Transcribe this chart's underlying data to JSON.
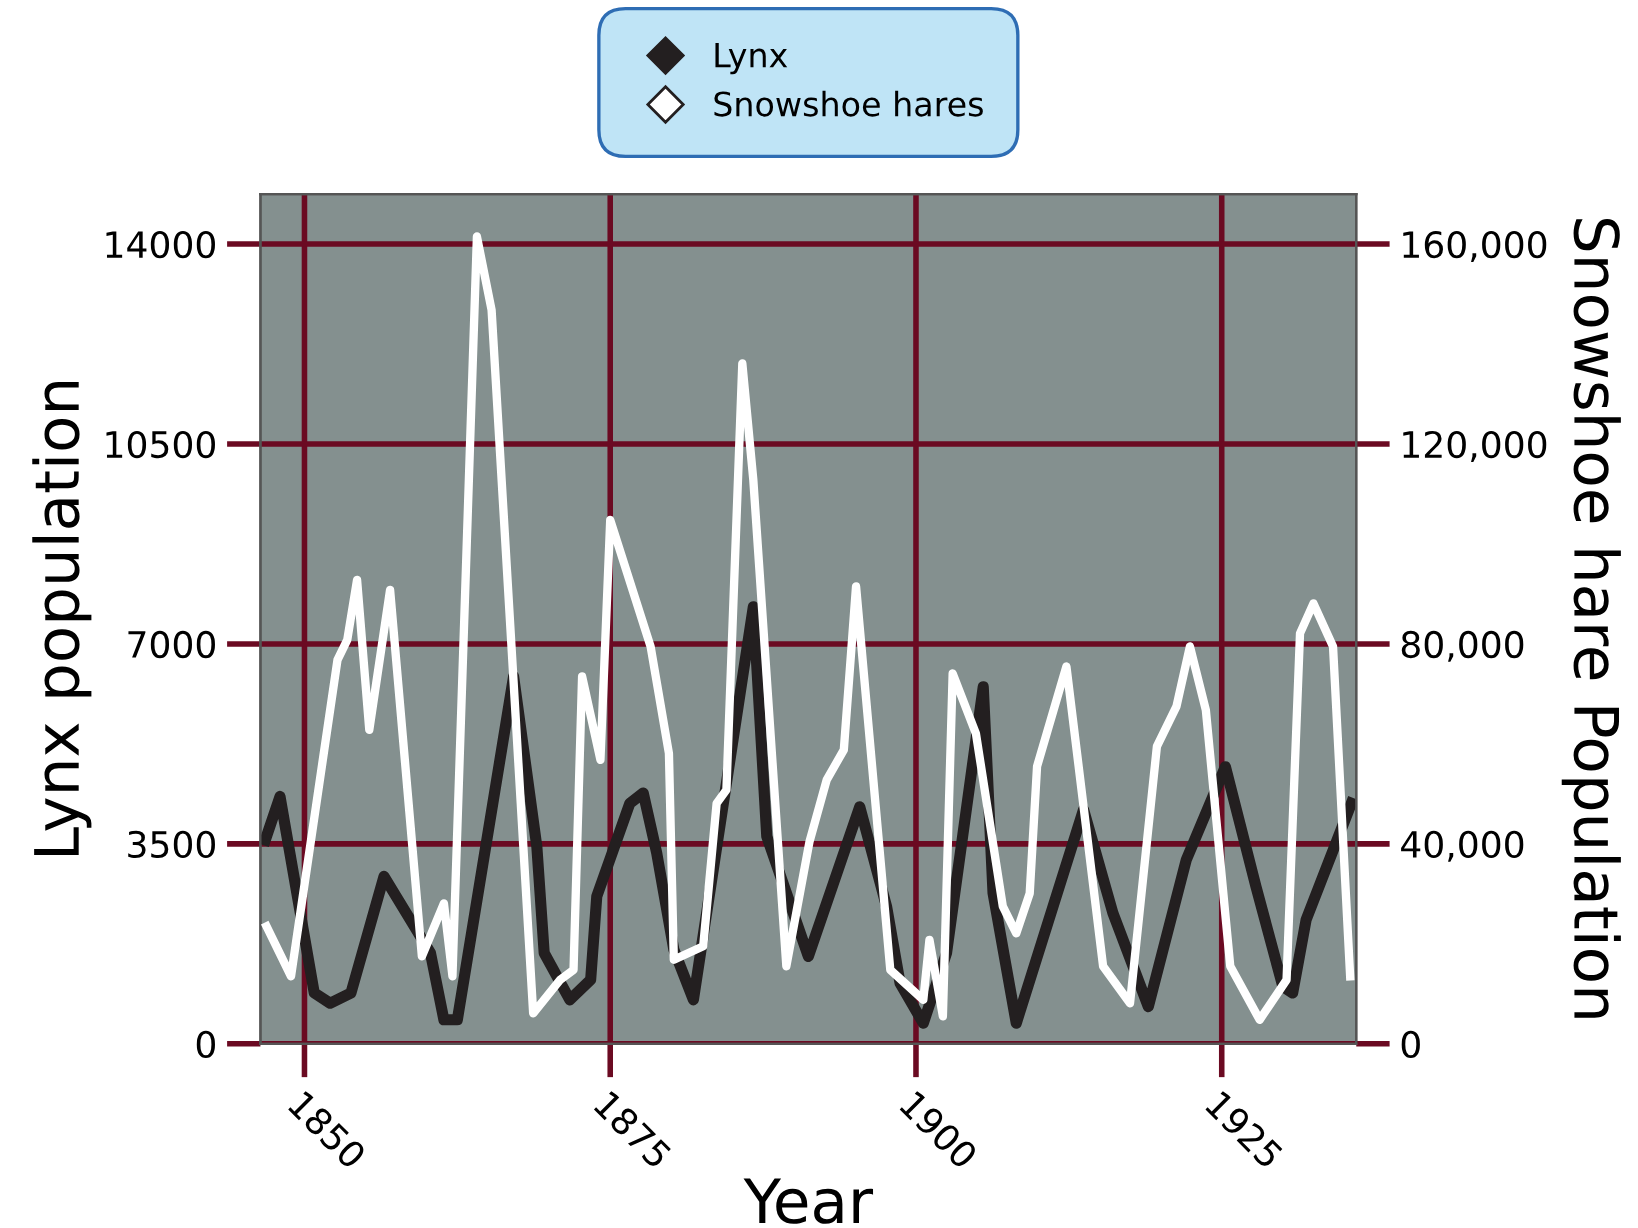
{
  "chart_data": {
    "type": "line",
    "xlabel": "Year",
    "ylabel": "Lynx population",
    "y2label": "Snowshoe hare Population",
    "xlim": [
      1846.4,
      1936
    ],
    "xticks": [
      1850,
      1875,
      1900,
      1925
    ],
    "ylim": [
      0,
      14875
    ],
    "yticks": [
      0,
      3500,
      7000,
      10500,
      14000
    ],
    "y2lim": [
      0,
      170000
    ],
    "y2ticks": [
      {
        "value": 0,
        "label": "0"
      },
      {
        "value": 40000,
        "label": "40,000"
      },
      {
        "value": 80000,
        "label": "80,000"
      },
      {
        "value": 120000,
        "label": "120,000"
      },
      {
        "value": 160000,
        "label": "160,000"
      }
    ],
    "grid": true,
    "legend": "top",
    "line_style": "solid",
    "series": [
      {
        "name": "Lynx",
        "color": "#231f20",
        "x": [
          1846.8,
          1848.0,
          1850.8,
          1852.1,
          1853.8,
          1856.5,
          1860.3,
          1861.4,
          1862.5,
          1867.1,
          1869.0,
          1869.6,
          1871.7,
          1873.4,
          1873.9,
          1876.6,
          1877.7,
          1878.8,
          1880.2,
          1881.8,
          1886.7,
          1887.8,
          1891.2,
          1895.4,
          1897.6,
          1898.7,
          1900.6,
          1902.5,
          1905.5,
          1906.3,
          1908.2,
          1913.7,
          1916.1,
          1919.0,
          1922.1,
          1925.3,
          1927.8,
          1930.0,
          1930.8,
          1931.9,
          1935.6
        ],
        "values": [
          3570,
          4330,
          890,
          710,
          890,
          2930,
          1590,
          420,
          420,
          6430,
          3450,
          1590,
          770,
          1120,
          2580,
          4210,
          4390,
          3340,
          1650,
          770,
          7650,
          3630,
          1530,
          4150,
          2400,
          1060,
          360,
          1590,
          6250,
          2640,
          360,
          4100,
          2290,
          650,
          3220,
          4850,
          2750,
          1000,
          890,
          2170,
          4210
        ]
      },
      {
        "name": "Snowshoe hares",
        "color": "#ffffff",
        "axis": "y2",
        "x": [
          1846.9,
          1848.9,
          1852.7,
          1853.5,
          1854.3,
          1855.3,
          1857.0,
          1859.6,
          1861.4,
          1862.1,
          1864.1,
          1865.3,
          1868.7,
          1870.9,
          1872.0,
          1872.7,
          1874.2,
          1875.0,
          1878.3,
          1879.8,
          1880.2,
          1882.6,
          1883.7,
          1884.5,
          1885.8,
          1886.7,
          1889.4,
          1891.3,
          1892.7,
          1894.1,
          1895.1,
          1897.9,
          1900.6,
          1901.1,
          1902.2,
          1903.0,
          1904.9,
          1907.1,
          1908.2,
          1909.3,
          1909.9,
          1912.3,
          1915.3,
          1917.5,
          1919.7,
          1921.3,
          1922.4,
          1923.7,
          1925.7,
          1928.1,
          1930.3,
          1931.4,
          1932.5,
          1934.1,
          1935.5
        ],
        "values": [
          23500,
          13500,
          76800,
          80800,
          92800,
          62800,
          90800,
          17500,
          28100,
          13500,
          161500,
          146800,
          6100,
          12800,
          14800,
          73500,
          56800,
          104800,
          79500,
          58100,
          16800,
          19500,
          48100,
          50800,
          136100,
          112800,
          15500,
          40500,
          52800,
          58800,
          91500,
          14800,
          8800,
          20800,
          5500,
          74100,
          62100,
          27500,
          22100,
          30100,
          55500,
          75500,
          15500,
          8100,
          59500,
          67500,
          79500,
          66800,
          15500,
          4800,
          12800,
          82100,
          88100,
          79500,
          13500
        ]
      }
    ]
  }
}
